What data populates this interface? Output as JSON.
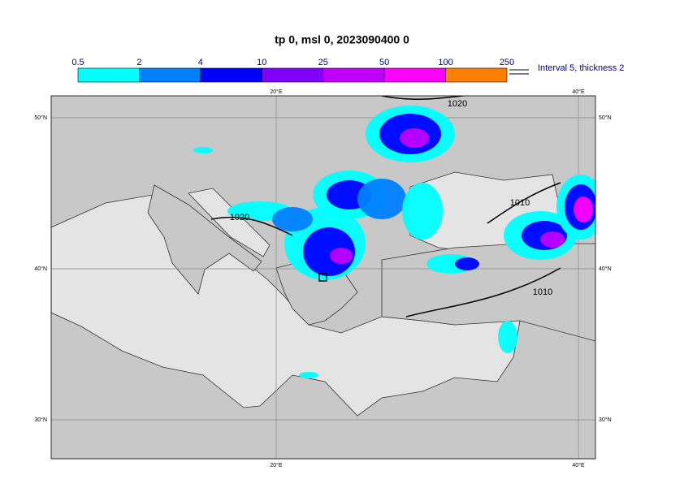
{
  "header": {
    "title": "tp 0, msl 0, 2023090400 0"
  },
  "colorbar": {
    "labels": [
      0.5,
      2,
      4,
      10,
      25,
      50,
      100,
      250
    ],
    "colors": [
      "#00ffff",
      "#0080ff",
      "#0000ff",
      "#8000ff",
      "#c000ff",
      "#ff00ff",
      "#ff8000",
      "#ff0000"
    ]
  },
  "legend": {
    "text": "Interval 5, thickness 2"
  },
  "map": {
    "lon_labels": [
      "20°E",
      "40°E"
    ],
    "lat_labels": [
      "50°N",
      "40°N",
      "30°N"
    ],
    "contour_labels": [
      "1020",
      "1020",
      "1010",
      "1010"
    ]
  }
}
